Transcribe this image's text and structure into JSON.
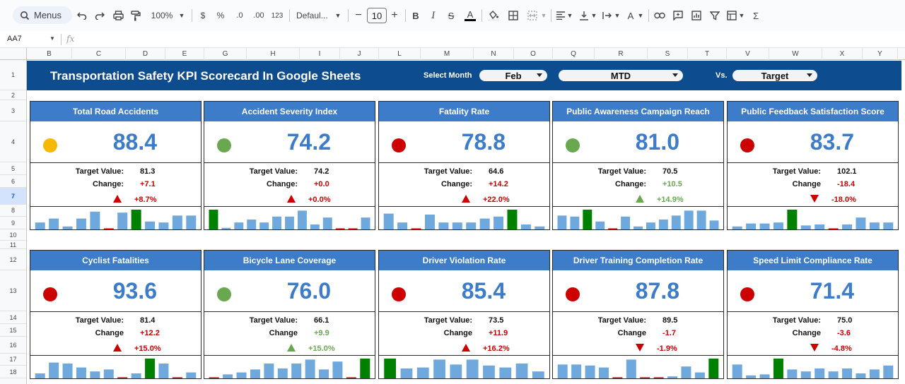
{
  "toolbar": {
    "menus_label": "Menus",
    "zoom": "100%",
    "currency": "$",
    "percent": "%",
    "dec_decrease": ".0",
    "dec_increase": ".00",
    "number_format": "123",
    "font": "Defaul...",
    "font_size": "10",
    "sigma": "Σ"
  },
  "formula_bar": {
    "cell_ref": "AA7",
    "fx": "fx"
  },
  "columns": [
    "B",
    "C",
    "D",
    "E",
    "G",
    "H",
    "I",
    "J",
    "L",
    "M",
    "N",
    "O",
    "Q",
    "R",
    "S",
    "T",
    "V",
    "W",
    "X",
    "Y"
  ],
  "rows": [
    "1",
    "2",
    "3",
    "4",
    "5",
    "6",
    "7",
    "8",
    "9",
    "10",
    "11",
    "12",
    "13",
    "14",
    "15",
    "16",
    "17",
    "18"
  ],
  "banner": {
    "title": "Transportation Safety KPI Scorecard In Google Sheets",
    "select_month_label": "Select Month",
    "month": "Feb",
    "period": "MTD",
    "vs_label": "Vs.",
    "compare": "Target"
  },
  "labels": {
    "target": "Target Value:",
    "change_colon": "Change:",
    "change": "Change"
  },
  "colors": {
    "header_blue": "#0d4c8f",
    "card_blue": "#3d7cc9",
    "red": "#cc0000",
    "green": "#6aa84f",
    "amber": "#f6b800",
    "bar": "#6fa8dc",
    "bar_hi": "#008000"
  },
  "cards": [
    {
      "title": "Total Road Accidents",
      "value": "88.4",
      "status": "amber",
      "target": "81.3",
      "change": "+7.1",
      "change_color": "red",
      "arrow": "up",
      "arrow_color": "red",
      "pct": "+8.7%",
      "pct_color": "red",
      "change_label": "change_colon",
      "bars": [
        0.35,
        0.55,
        0.15,
        0.55,
        0.9,
        0.05,
        0.85,
        1.0,
        0.4,
        0.35,
        0.7,
        0.7
      ],
      "hi": 7
    },
    {
      "title": "Accident Severity Index",
      "value": "74.2",
      "status": "green",
      "target": "74.2",
      "change": "+0.0",
      "change_color": "red",
      "arrow": "up",
      "arrow_color": "red",
      "pct": "+0.0%",
      "pct_color": "red",
      "change_label": "change_colon",
      "bars": [
        1.0,
        0.08,
        0.35,
        0.5,
        0.35,
        0.65,
        0.65,
        0.95,
        0.25,
        0.6,
        0.05,
        0.05,
        0.6
      ],
      "hi": 0
    },
    {
      "title": "Fatality Rate",
      "value": "78.8",
      "status": "red",
      "target": "64.6",
      "change": "+14.2",
      "change_color": "red",
      "arrow": "up",
      "arrow_color": "red",
      "pct": "+22.0%",
      "pct_color": "red",
      "change_label": "change_colon",
      "bars": [
        0.8,
        0.35,
        0.05,
        0.75,
        0.35,
        0.35,
        0.35,
        0.55,
        0.65,
        1.0,
        0.25,
        0.15
      ],
      "hi": 9
    },
    {
      "title": "Public Awareness Campaign Reach",
      "value": "81.0",
      "status": "green",
      "target": "70.5",
      "change": "+10.5",
      "change_color": "green",
      "arrow": "up",
      "arrow_color": "green",
      "pct": "+14.9%",
      "pct_color": "green",
      "change_label": "change_colon",
      "bars": [
        0.7,
        0.65,
        1.0,
        0.4,
        0.05,
        0.65,
        0.15,
        0.35,
        0.5,
        0.7,
        0.95,
        0.95,
        0.45
      ],
      "hi": 2
    },
    {
      "title": "Public Feedback Satisfaction Score",
      "value": "83.7",
      "status": "red",
      "target": "102.1",
      "change": "-18.4",
      "change_color": "red",
      "arrow": "down",
      "arrow_color": "red",
      "pct": "-18.0%",
      "pct_color": "red",
      "change_label": "change",
      "bars": [
        0.15,
        0.3,
        0.3,
        0.35,
        1.0,
        0.2,
        0.25,
        0.05,
        0.25,
        0.6,
        0.35,
        0.35
      ],
      "hi": 4
    },
    {
      "title": "Cyclist Fatalities",
      "value": "93.6",
      "status": "red",
      "target": "81.4",
      "change": "+12.2",
      "change_color": "red",
      "arrow": "up",
      "arrow_color": "red",
      "pct": "+15.0%",
      "pct_color": "red",
      "change_label": "change",
      "bars": [
        0.25,
        0.8,
        0.75,
        0.55,
        0.35,
        0.45,
        0.05,
        0.25,
        1.0,
        0.75,
        0.05,
        0.3
      ],
      "hi": 8
    },
    {
      "title": "Bicycle Lane Coverage",
      "value": "76.0",
      "status": "green",
      "target": "66.1",
      "change": "+9.9",
      "change_color": "green",
      "arrow": "up",
      "arrow_color": "green",
      "pct": "+15.0%",
      "pct_color": "green",
      "change_label": "change",
      "bars": [
        0.05,
        0.2,
        0.3,
        0.45,
        0.75,
        0.5,
        0.75,
        0.95,
        0.45,
        0.85,
        0.05,
        1.0
      ],
      "hi": 11
    },
    {
      "title": "Driver Violation Rate",
      "value": "85.4",
      "status": "red",
      "target": "73.5",
      "change": "+11.9",
      "change_color": "red",
      "arrow": "up",
      "arrow_color": "red",
      "pct": "+16.2%",
      "pct_color": "red",
      "change_label": "change",
      "bars": [
        1.0,
        0.5,
        0.55,
        0.95,
        0.7,
        0.95,
        0.65,
        0.55,
        0.75,
        0.35
      ],
      "hi": 0
    },
    {
      "title": "Driver Training Completion Rate",
      "value": "87.8",
      "status": "red",
      "target": "89.5",
      "change": "-1.7",
      "change_color": "red",
      "arrow": "down",
      "arrow_color": "red",
      "pct": "-1.9%",
      "pct_color": "red",
      "change_label": "change",
      "bars": [
        0.7,
        0.7,
        0.65,
        0.55,
        0.05,
        0.95,
        0.05,
        0.05,
        0.1,
        0.6,
        0.3,
        1.0
      ],
      "hi": 11
    },
    {
      "title": "Speed Limit Compliance Rate",
      "value": "71.4",
      "status": "red",
      "target": "75.0",
      "change": "-3.6",
      "change_color": "red",
      "arrow": "down",
      "arrow_color": "red",
      "pct": "-4.8%",
      "pct_color": "red",
      "change_label": "change",
      "bars": [
        0.7,
        0.15,
        0.2,
        1.0,
        0.45,
        0.35,
        0.5,
        0.35,
        0.5,
        0.25,
        0.45,
        0.65
      ],
      "hi": 3
    }
  ]
}
